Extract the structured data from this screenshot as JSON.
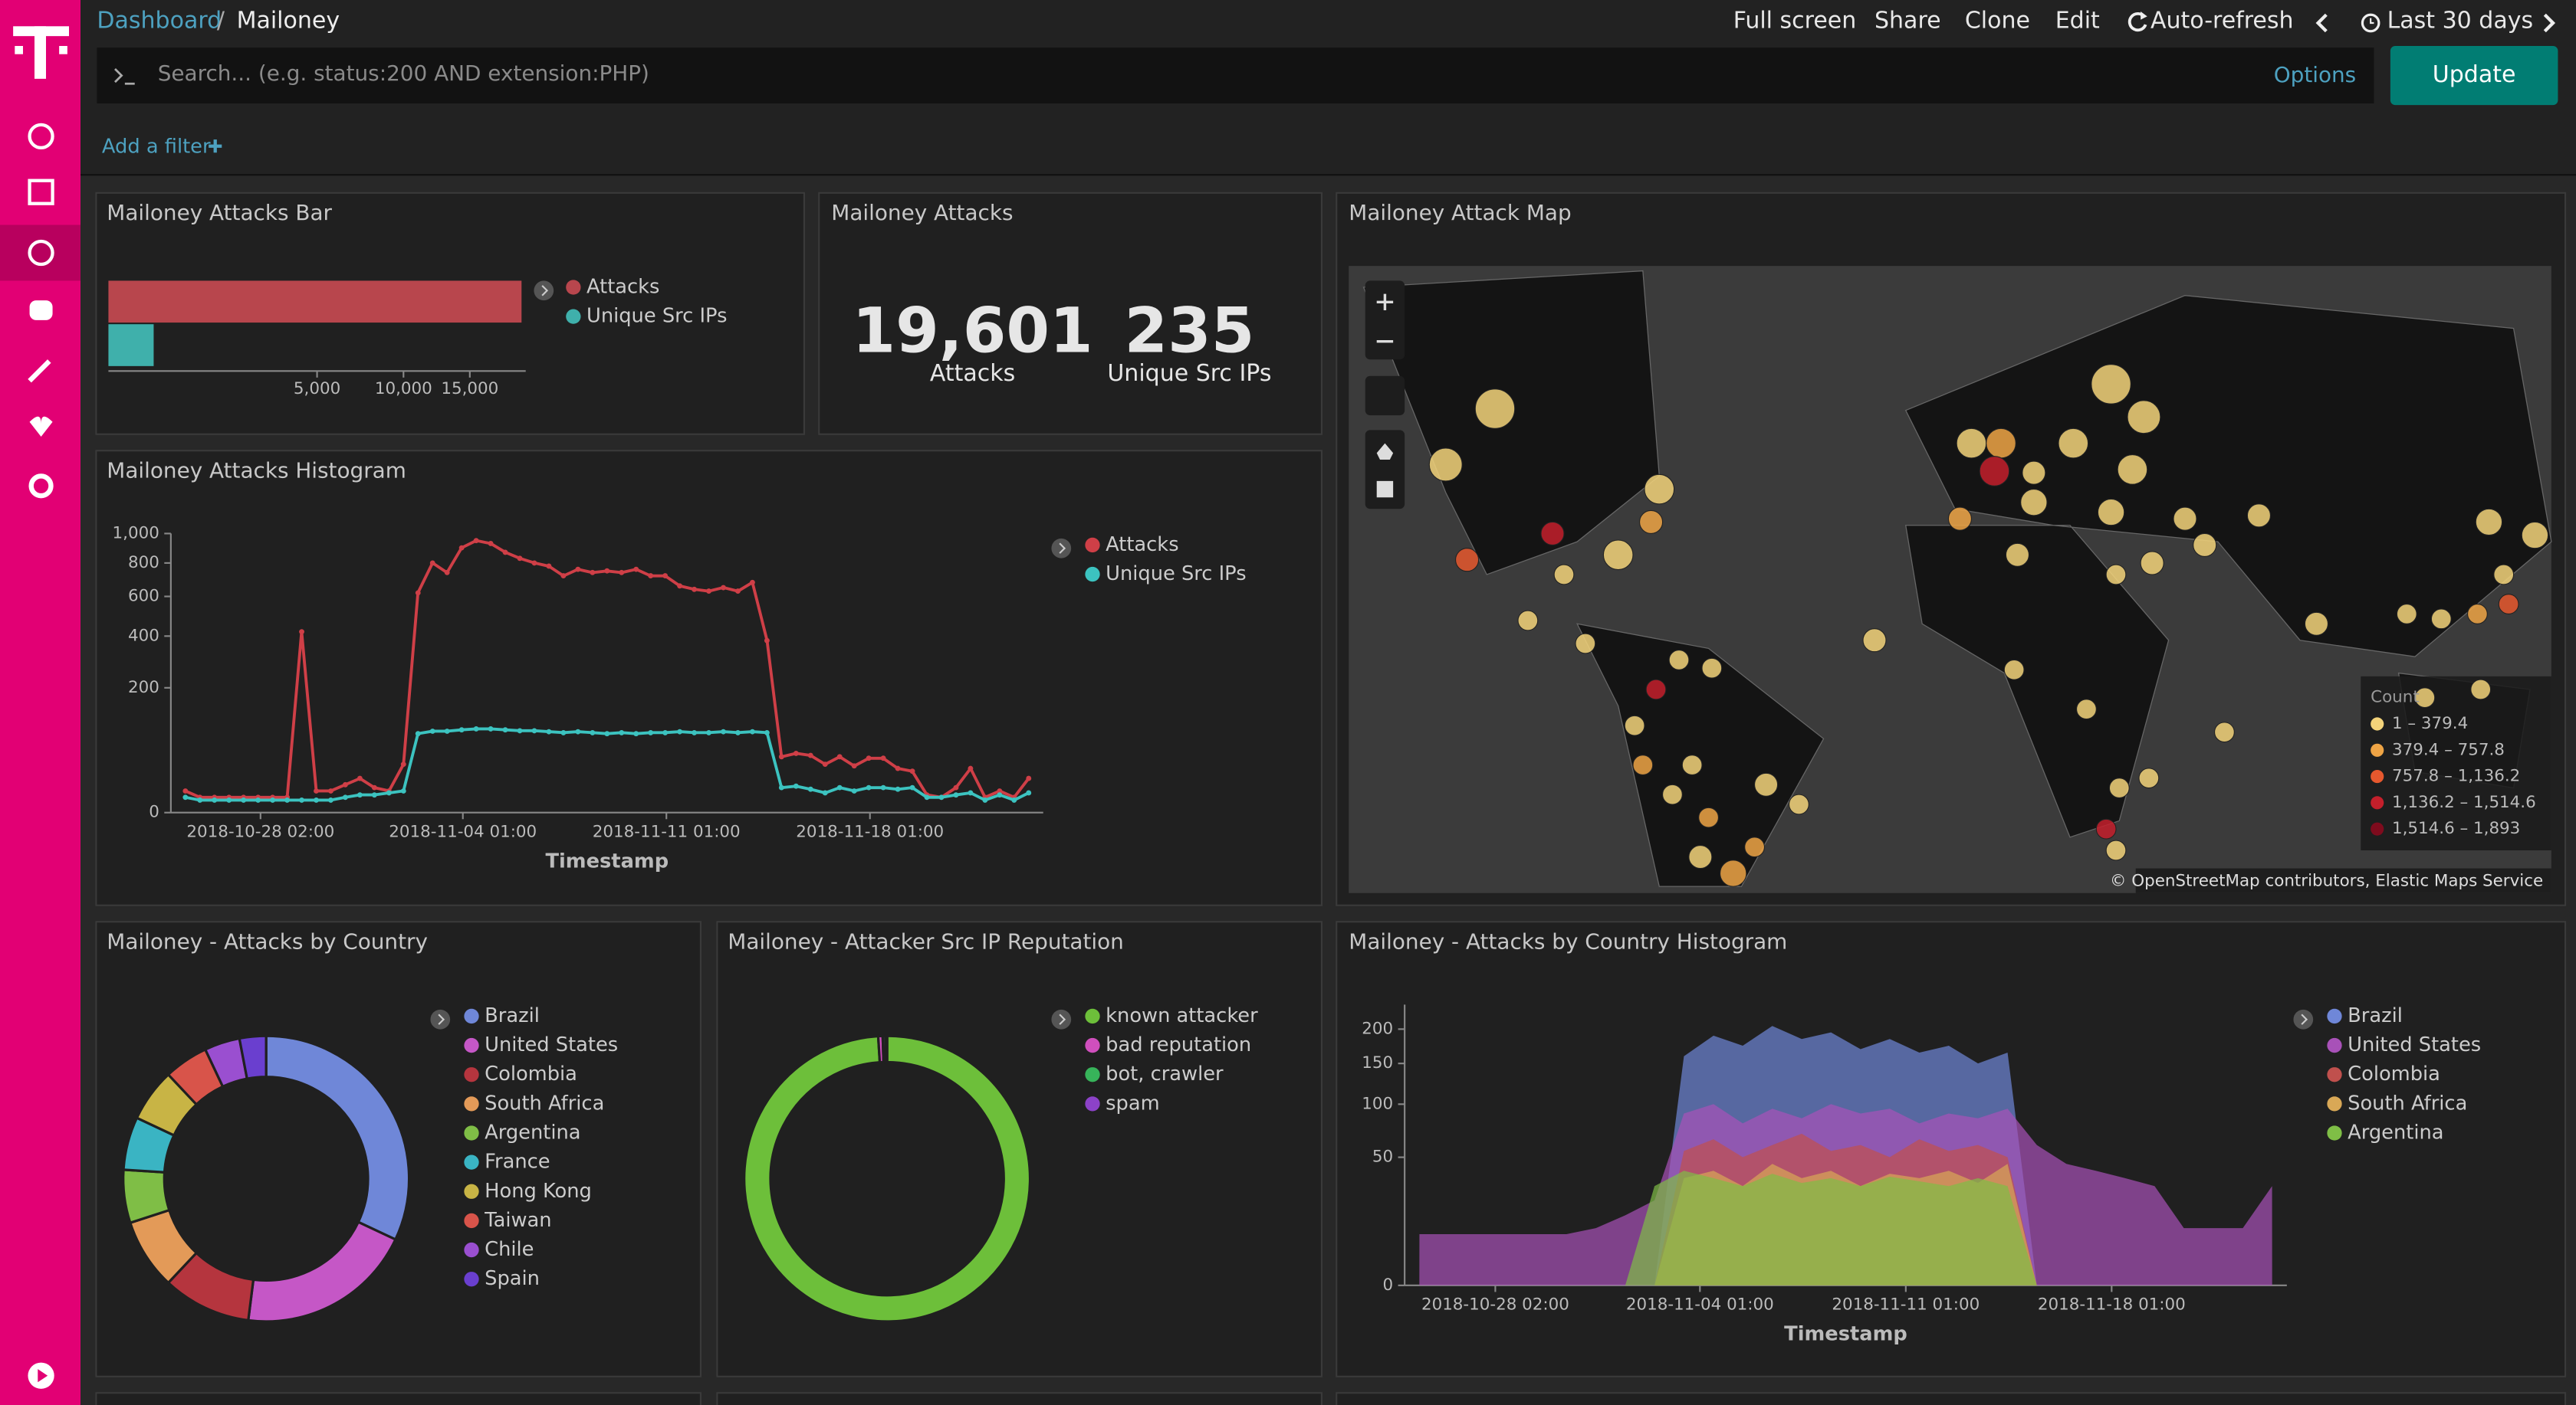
{
  "breadcrumb": {
    "items": [
      "Dashboard",
      "Mailoney"
    ],
    "separator": "/"
  },
  "top_menu": [
    "Full screen",
    "Share",
    "Clone",
    "Edit",
    "Auto-refresh",
    "Last 30 days"
  ],
  "query": {
    "placeholder": "Search... (e.g. status:200 AND extension:PHP)",
    "options": "Options",
    "submit": "Update"
  },
  "filter_link": "Add a filter",
  "metric_panel": {
    "title": "Mailoney Attacks",
    "metrics": [
      {
        "value": "19,601",
        "label": "Attacks"
      },
      {
        "value": "235",
        "label": "Unique Src IPs"
      }
    ]
  },
  "map_panel": {
    "title": "Mailoney Attack Map",
    "legend": {
      "title": "Count",
      "items": [
        "1 – 379.4",
        "379.4 – 757.8",
        "757.8 – 1,136.2",
        "1,136.2 – 1,514.6",
        "1,514.6 – 1,893"
      ],
      "colors": [
        "#f3d37a",
        "#eea445",
        "#e6582e",
        "#c41f2b",
        "#7e0b1d"
      ]
    },
    "attribution": "© OpenStreetMap contributors, Elastic Maps Service"
  },
  "chart_data": [
    {
      "type": "hbar",
      "title": "Mailoney Attacks Bar",
      "scale": "sqrt",
      "series": [
        {
          "name": "Attacks",
          "color": "#b8464d",
          "values": [
            19601
          ]
        },
        {
          "name": "Unique Src IPs",
          "color": "#3fb0ab",
          "values": [
            235
          ]
        }
      ],
      "xlim": [
        0,
        20000
      ],
      "xticks": [
        {
          "value": 5000,
          "label": "5,000"
        },
        {
          "value": 10000,
          "label": "10,000"
        },
        {
          "value": 15000,
          "label": "15,000"
        }
      ]
    },
    {
      "type": "line",
      "title": "Mailoney Attacks Histogram",
      "xlabel": "Timestamp",
      "scale": "sqrt",
      "x": [
        "2018-10-25 12:00",
        "2018-10-26 00:00",
        "2018-10-26 12:00",
        "2018-10-27 00:00",
        "2018-10-27 12:00",
        "2018-10-28 00:00",
        "2018-10-28 12:00",
        "2018-10-29 00:00",
        "2018-10-29 12:00",
        "2018-10-30 00:00",
        "2018-10-30 12:00",
        "2018-10-31 00:00",
        "2018-10-31 12:00",
        "2018-11-01 00:00",
        "2018-11-01 12:00",
        "2018-11-02 00:00",
        "2018-11-02 12:00",
        "2018-11-03 00:00",
        "2018-11-03 12:00",
        "2018-11-04 00:00",
        "2018-11-04 12:00",
        "2018-11-05 00:00",
        "2018-11-05 12:00",
        "2018-11-06 00:00",
        "2018-11-06 12:00",
        "2018-11-07 00:00",
        "2018-11-07 12:00",
        "2018-11-08 00:00",
        "2018-11-08 12:00",
        "2018-11-09 00:00",
        "2018-11-09 12:00",
        "2018-11-10 00:00",
        "2018-11-10 12:00",
        "2018-11-11 00:00",
        "2018-11-11 12:00",
        "2018-11-12 00:00",
        "2018-11-12 12:00",
        "2018-11-13 00:00",
        "2018-11-13 12:00",
        "2018-11-14 00:00",
        "2018-11-14 12:00",
        "2018-11-15 00:00",
        "2018-11-15 12:00",
        "2018-11-16 00:00",
        "2018-11-16 12:00",
        "2018-11-17 00:00",
        "2018-11-17 12:00",
        "2018-11-18 00:00",
        "2018-11-18 12:00",
        "2018-11-19 00:00",
        "2018-11-19 12:00",
        "2018-11-20 00:00",
        "2018-11-20 12:00",
        "2018-11-21 00:00",
        "2018-11-21 12:00",
        "2018-11-22 00:00",
        "2018-11-22 12:00",
        "2018-11-23 00:00",
        "2018-11-23 12:00"
      ],
      "series": [
        {
          "name": "Attacks",
          "color": "#cf3f47",
          "values": [
            6,
            3,
            3,
            3,
            3,
            3,
            3,
            3,
            420,
            6,
            6,
            10,
            15,
            8,
            6,
            30,
            620,
            800,
            740,
            900,
            950,
            930,
            870,
            830,
            800,
            780,
            720,
            760,
            740,
            750,
            740,
            760,
            720,
            720,
            660,
            640,
            630,
            650,
            630,
            680,
            380,
            40,
            45,
            42,
            30,
            40,
            28,
            38,
            38,
            25,
            22,
            4,
            3,
            8,
            25,
            3,
            6,
            3,
            15
          ]
        },
        {
          "name": "Unique Src IPs",
          "color": "#3cc3c0",
          "values": [
            3,
            2,
            2,
            2,
            2,
            2,
            2,
            2,
            2,
            2,
            2,
            3,
            4,
            4,
            5,
            6,
            80,
            85,
            85,
            88,
            90,
            90,
            88,
            86,
            86,
            84,
            82,
            84,
            82,
            80,
            82,
            80,
            82,
            82,
            84,
            82,
            82,
            84,
            82,
            84,
            82,
            8,
            9,
            7,
            5,
            8,
            6,
            8,
            8,
            7,
            8,
            3,
            3,
            4,
            5,
            2,
            4,
            2,
            5
          ]
        }
      ],
      "xlim": [
        "2018-10-25 00:00",
        "2018-11-24 00:00"
      ],
      "xticks": [
        "2018-10-28 02:00",
        "2018-11-04 01:00",
        "2018-11-11 01:00",
        "2018-11-18 01:00"
      ],
      "ylim": [
        0,
        1000
      ],
      "yticks": [
        0,
        200,
        400,
        600,
        800,
        {
          "value": 1000,
          "label": "1,000"
        }
      ]
    },
    {
      "type": "donut",
      "title": "Mailoney - Attacks by Country",
      "categories": [
        "Brazil",
        "United States",
        "Colombia",
        "South Africa",
        "Argentina",
        "France",
        "Hong Kong",
        "Taiwan",
        "Chile",
        "Spain"
      ],
      "values": [
        32,
        20,
        10,
        8,
        6,
        6,
        6,
        5,
        4,
        3
      ],
      "colors": [
        "#6f87d8",
        "#c557c6",
        "#b5353e",
        "#e39a58",
        "#7fbe46",
        "#3ab4c3",
        "#c8b445",
        "#d8544a",
        "#9a4fd0",
        "#6a3fcf"
      ]
    },
    {
      "type": "donut",
      "title": "Mailoney - Attacker Src IP Reputation",
      "categories": [
        "known attacker",
        "bad reputation",
        "bot, crawler",
        "spam"
      ],
      "values": [
        99,
        0.5,
        0.3,
        0.2
      ],
      "colors": [
        "#6dbf3a",
        "#d04fbd",
        "#37b45a",
        "#8c42c8"
      ]
    },
    {
      "type": "area",
      "title": "Mailoney - Attacks by Country Histogram",
      "xlabel": "Timestamp",
      "scale": "sqrt",
      "x": [
        "2018-10-25 12:00",
        "2018-10-26 12:00",
        "2018-10-27 12:00",
        "2018-10-28 12:00",
        "2018-10-29 12:00",
        "2018-10-30 12:00",
        "2018-10-31 12:00",
        "2018-11-01 12:00",
        "2018-11-02 12:00",
        "2018-11-03 12:00",
        "2018-11-04 12:00",
        "2018-11-05 12:00",
        "2018-11-06 12:00",
        "2018-11-07 12:00",
        "2018-11-08 12:00",
        "2018-11-09 12:00",
        "2018-11-10 12:00",
        "2018-11-11 12:00",
        "2018-11-12 12:00",
        "2018-11-13 12:00",
        "2018-11-14 12:00",
        "2018-11-15 12:00",
        "2018-11-16 12:00",
        "2018-11-17 12:00",
        "2018-11-18 12:00",
        "2018-11-19 12:00",
        "2018-11-20 12:00",
        "2018-11-21 12:00",
        "2018-11-22 12:00",
        "2018-11-23 12:00"
      ],
      "series": [
        {
          "name": "Brazil",
          "color": "#6f87d8",
          "values": [
            0,
            0,
            0,
            0,
            0,
            0,
            0,
            0,
            0,
            160,
            190,
            175,
            205,
            185,
            195,
            170,
            185,
            165,
            175,
            150,
            165,
            0,
            0,
            0,
            0,
            0,
            0,
            0,
            0,
            0
          ]
        },
        {
          "name": "United States",
          "color": "#a851b8",
          "values": [
            8,
            8,
            8,
            8,
            8,
            8,
            10,
            15,
            22,
            90,
            100,
            80,
            95,
            85,
            100,
            90,
            95,
            80,
            90,
            85,
            95,
            60,
            45,
            40,
            35,
            30,
            10,
            10,
            10,
            30
          ]
        },
        {
          "name": "Colombia",
          "color": "#c0504d",
          "values": [
            0,
            0,
            0,
            0,
            0,
            0,
            0,
            0,
            0,
            55,
            65,
            50,
            60,
            70,
            55,
            60,
            50,
            65,
            55,
            60,
            50,
            0,
            0,
            0,
            0,
            0,
            0,
            0,
            0,
            0
          ]
        },
        {
          "name": "South Africa",
          "color": "#d9a856",
          "values": [
            0,
            0,
            0,
            0,
            0,
            0,
            0,
            0,
            0,
            35,
            40,
            30,
            45,
            35,
            40,
            30,
            38,
            35,
            40,
            32,
            45,
            0,
            0,
            0,
            0,
            0,
            0,
            0,
            0,
            0
          ]
        },
        {
          "name": "Argentina",
          "color": "#7fbe46",
          "values": [
            0,
            0,
            0,
            0,
            0,
            0,
            0,
            0,
            30,
            40,
            35,
            30,
            38,
            32,
            35,
            30,
            36,
            33,
            30,
            35,
            30,
            0,
            0,
            0,
            0,
            0,
            0,
            0,
            0,
            0
          ]
        }
      ],
      "xlim": [
        "2018-10-25 00:00",
        "2018-11-24 00:00"
      ],
      "xticks": [
        "2018-10-28 02:00",
        "2018-11-04 01:00",
        "2018-11-11 01:00",
        "2018-11-18 01:00"
      ],
      "ylim": [
        0,
        240
      ],
      "yticks": [
        0,
        50,
        100,
        150,
        200
      ]
    }
  ]
}
